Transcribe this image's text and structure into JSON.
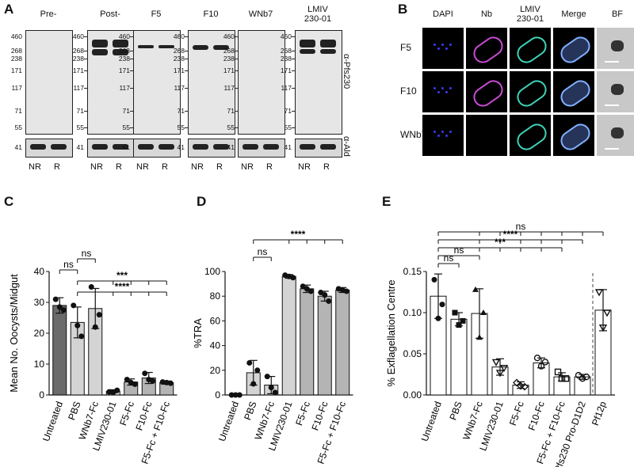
{
  "panel_labels": [
    "A",
    "B",
    "C",
    "D",
    "E"
  ],
  "panelA": {
    "blots": [
      {
        "title": "Pre-",
        "bands": []
      },
      {
        "title": "Post-",
        "bands": [
          {
            "y": 50,
            "h": 10
          },
          {
            "y": 62,
            "h": 8
          }
        ]
      },
      {
        "title": "F5",
        "bands": [
          {
            "y": 57,
            "h": 4
          }
        ]
      },
      {
        "title": "F10",
        "bands": [
          {
            "y": 57,
            "h": 6
          }
        ]
      },
      {
        "title": "WNb7",
        "bands": []
      },
      {
        "title": "LMIV\n230-01",
        "bands": [
          {
            "y": 50,
            "h": 10
          },
          {
            "y": 62,
            "h": 6
          }
        ]
      }
    ],
    "mw_labels": [
      "460",
      "268",
      "238",
      "171",
      "117",
      "71",
      "55"
    ],
    "ald_mw": "41",
    "lanes": [
      "NR",
      "R"
    ],
    "side_labels": {
      "top": "α-Pfs230",
      "bottom": "α-Ald"
    }
  },
  "panelB": {
    "columns": [
      "DAPI",
      "Nb",
      "LMIV\n230-01",
      "Merge",
      "BF"
    ],
    "rows": [
      "F5",
      "F10",
      "WNb7"
    ]
  },
  "chart_data": [
    {
      "panel": "C",
      "type": "bar",
      "ylabel": "Mean No. Oocysts/Midgut",
      "ylim": [
        0,
        40
      ],
      "yticks": [
        0,
        10,
        20,
        30,
        40
      ],
      "categories": [
        "Untreated",
        "PBS",
        "WNb7-Fc",
        "LMIV230-01",
        "F5-Fc",
        "F10-Fc",
        "F5-Fc + F10-Fc"
      ],
      "values": [
        29,
        23.5,
        28,
        1.2,
        4.2,
        5.5,
        4.0
      ],
      "errors": [
        2.5,
        5,
        6.5,
        0.5,
        1,
        1.8,
        0.5
      ],
      "points": [
        [
          31,
          27.5,
          28.5
        ],
        [
          29,
          19,
          22.5
        ],
        [
          35,
          26,
          22
        ],
        [
          1,
          1.5,
          0.8
        ],
        [
          5,
          3.5,
          4
        ],
        [
          7,
          4.5,
          5
        ],
        [
          4.2,
          3.8,
          4
        ]
      ],
      "colors": [
        "#6b6b6b",
        "#d4d4d4",
        "#d4d4d4",
        "#d4d4d4",
        "#b4b4b4",
        "#b4b4b4",
        "#b4b4b4"
      ],
      "annotations": [
        {
          "text": "ns",
          "from": 1,
          "to": 2
        },
        {
          "text": "ns",
          "from": 0,
          "to": 1
        },
        {
          "text": "***",
          "from": 1,
          "to": 6
        },
        {
          "text": "****",
          "from": 1,
          "to": 6
        }
      ]
    },
    {
      "panel": "D",
      "type": "bar",
      "ylabel": "%TRA",
      "ylim": [
        0,
        100
      ],
      "yticks": [
        0,
        20,
        40,
        60,
        80,
        100
      ],
      "categories": [
        "Untreated",
        "PBS",
        "WNb7-Fc",
        "LMIV230-01",
        "F5-Fc",
        "F10-Fc",
        "F5-Fc + F10-Fc"
      ],
      "values": [
        0,
        18,
        8,
        96,
        86,
        80,
        85
      ],
      "errors": [
        0,
        10,
        7,
        1.5,
        3,
        4,
        2
      ],
      "points": [
        [
          0,
          0,
          0
        ],
        [
          26,
          20,
          9
        ],
        [
          15,
          2,
          6
        ],
        [
          97,
          95,
          96
        ],
        [
          88,
          84,
          86
        ],
        [
          83,
          76,
          81
        ],
        [
          86,
          84,
          85
        ]
      ],
      "colors": [
        "#d4d4d4",
        "#d4d4d4",
        "#d4d4d4",
        "#d4d4d4",
        "#b4b4b4",
        "#b4b4b4",
        "#b4b4b4"
      ],
      "annotations": [
        {
          "text": "ns",
          "from": 1,
          "to": 2
        },
        {
          "text": "****",
          "from": 1,
          "to": 6
        }
      ]
    },
    {
      "panel": "E",
      "type": "bar",
      "ylabel": "% Exflagellation Centre",
      "ylim": [
        0,
        0.15
      ],
      "yticks": [
        "0.00",
        "0.05",
        "0.10",
        "0.15"
      ],
      "categories": [
        "Untreated",
        "PBS",
        "WNb7-Fc",
        "LMIV230-01",
        "F5-Fc",
        "F10-Fc",
        "F5-Fc + F10-Fc",
        "Pfs230 Pro-D1D2",
        "Pf12p"
      ],
      "values": [
        0.12,
        0.092,
        0.099,
        0.034,
        0.012,
        0.039,
        0.022,
        0.022,
        0.103
      ],
      "errors": [
        0.027,
        0.008,
        0.03,
        0.01,
        0.004,
        0.006,
        0.005,
        0.003,
        0.025
      ],
      "points": [
        [
          0.14,
          0.11,
          0.093
        ],
        [
          0.1,
          0.09,
          0.085
        ],
        [
          0.128,
          0.1,
          0.07
        ],
        [
          0.04,
          0.033,
          0.027
        ],
        [
          0.015,
          0.01,
          0.011
        ],
        [
          0.045,
          0.04,
          0.035
        ],
        [
          0.028,
          0.02,
          0.02
        ],
        [
          0.024,
          0.022,
          0.02
        ],
        [
          0.125,
          0.1,
          0.082
        ]
      ],
      "annotations": [
        {
          "text": "ns",
          "from": 0,
          "to": 1
        },
        {
          "text": "ns",
          "from": 0,
          "to": 2
        },
        {
          "text": "***",
          "from": 0,
          "to": 6
        },
        {
          "text": "****",
          "from": 0,
          "to": 7
        },
        {
          "text": "ns",
          "from": 0,
          "to": 8
        }
      ]
    }
  ]
}
